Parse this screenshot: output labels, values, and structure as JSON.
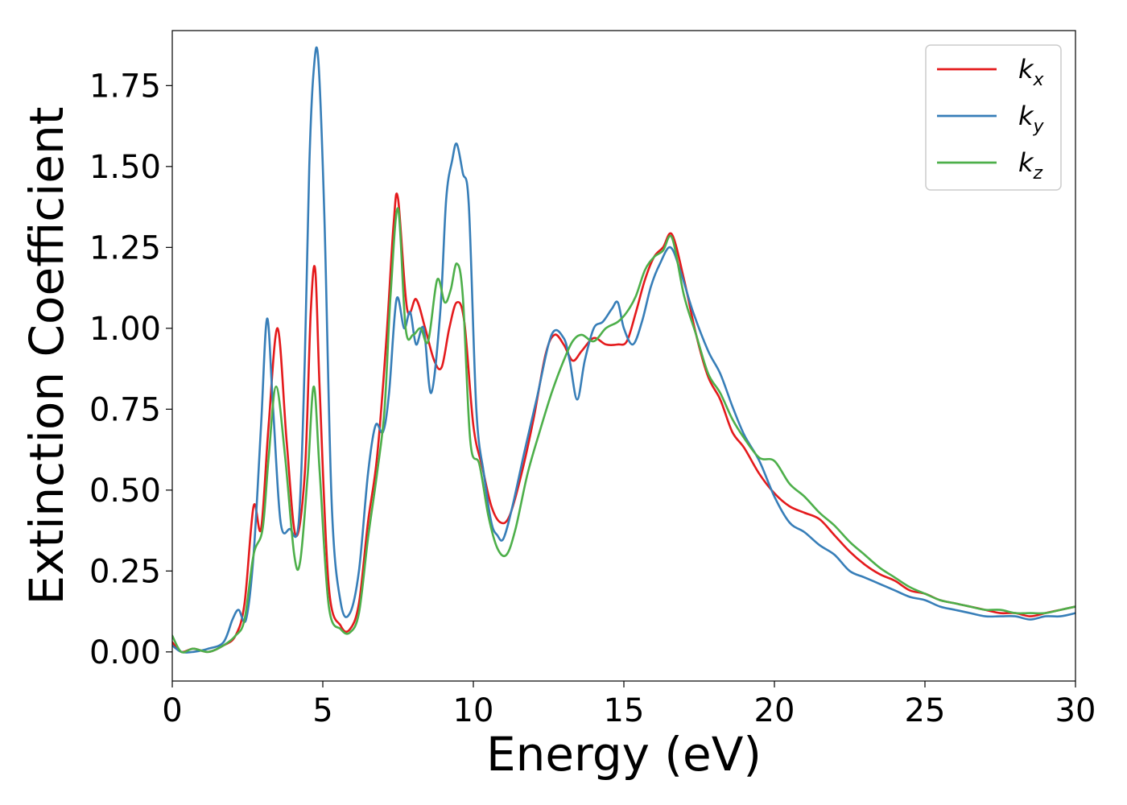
{
  "chart_data": {
    "type": "line",
    "xlabel": "Energy (eV)",
    "ylabel": "Extinction Coefficient",
    "xlim": [
      0,
      30
    ],
    "ylim": [
      -0.09,
      1.92
    ],
    "xticks": [
      0,
      5,
      10,
      15,
      20,
      25,
      30
    ],
    "xtick_labels": [
      "0",
      "5",
      "10",
      "15",
      "20",
      "25",
      "30"
    ],
    "yticks": [
      0.0,
      0.25,
      0.5,
      0.75,
      1.0,
      1.25,
      1.5,
      1.75
    ],
    "ytick_labels": [
      "0.00",
      "0.25",
      "0.50",
      "0.75",
      "1.00",
      "1.25",
      "1.50",
      "1.75"
    ],
    "grid": false,
    "legend_position": "top-right",
    "series": [
      {
        "name": "k_x",
        "label_base": "k",
        "label_sub": "x",
        "color": "#e41a1c",
        "x": [
          0,
          0.3,
          0.7,
          1.2,
          1.7,
          2.1,
          2.4,
          2.7,
          2.95,
          3.2,
          3.5,
          3.8,
          4.1,
          4.4,
          4.6,
          4.75,
          4.9,
          5.2,
          5.6,
          5.9,
          6.2,
          6.5,
          6.8,
          7.1,
          7.35,
          7.5,
          7.8,
          8.1,
          8.4,
          8.7,
          8.95,
          9.2,
          9.45,
          9.7,
          10.0,
          10.3,
          10.6,
          10.9,
          11.2,
          11.6,
          12.0,
          12.4,
          12.7,
          13.0,
          13.3,
          13.6,
          14.0,
          14.4,
          14.8,
          15.1,
          15.4,
          15.7,
          16.0,
          16.3,
          16.6,
          17.0,
          17.4,
          17.8,
          18.2,
          18.6,
          19.0,
          19.5,
          20.0,
          20.5,
          21.0,
          21.5,
          22.0,
          22.5,
          23.0,
          23.5,
          24.0,
          24.5,
          25.0,
          25.5,
          26.0,
          26.5,
          27.0,
          27.5,
          28.0,
          28.5,
          29.0,
          29.5,
          30.0
        ],
        "y": [
          0.03,
          0.0,
          0.01,
          0.0,
          0.02,
          0.05,
          0.15,
          0.45,
          0.38,
          0.7,
          1.0,
          0.65,
          0.36,
          0.55,
          1.05,
          1.18,
          0.8,
          0.2,
          0.08,
          0.07,
          0.15,
          0.4,
          0.6,
          0.95,
          1.32,
          1.4,
          1.06,
          1.09,
          1.0,
          0.9,
          0.88,
          1.0,
          1.08,
          1.02,
          0.7,
          0.57,
          0.45,
          0.4,
          0.42,
          0.55,
          0.72,
          0.92,
          0.98,
          0.95,
          0.9,
          0.93,
          0.97,
          0.95,
          0.95,
          0.96,
          1.05,
          1.15,
          1.22,
          1.25,
          1.29,
          1.15,
          0.98,
          0.85,
          0.78,
          0.68,
          0.63,
          0.55,
          0.49,
          0.45,
          0.43,
          0.41,
          0.36,
          0.31,
          0.27,
          0.24,
          0.22,
          0.19,
          0.18,
          0.16,
          0.15,
          0.14,
          0.13,
          0.12,
          0.12,
          0.11,
          0.12,
          0.13,
          0.14
        ]
      },
      {
        "name": "k_y",
        "label_base": "k",
        "label_sub": "y",
        "color": "#377eb8",
        "x": [
          0,
          0.3,
          0.7,
          1.2,
          1.7,
          2.0,
          2.2,
          2.45,
          2.7,
          2.95,
          3.15,
          3.35,
          3.6,
          3.9,
          4.2,
          4.4,
          4.55,
          4.7,
          4.85,
          5.05,
          5.3,
          5.6,
          5.9,
          6.2,
          6.5,
          6.75,
          7.0,
          7.2,
          7.45,
          7.7,
          7.9,
          8.1,
          8.35,
          8.6,
          8.9,
          9.1,
          9.3,
          9.45,
          9.65,
          9.85,
          10.1,
          10.35,
          10.6,
          10.8,
          11.0,
          11.3,
          11.7,
          12.1,
          12.6,
          13.0,
          13.2,
          13.45,
          13.7,
          14.0,
          14.3,
          14.6,
          14.8,
          15.0,
          15.3,
          15.6,
          15.9,
          16.2,
          16.55,
          16.9,
          17.3,
          17.8,
          18.2,
          18.6,
          19.0,
          19.5,
          20.0,
          20.5,
          21.0,
          21.5,
          22.0,
          22.5,
          23.0,
          23.5,
          24.0,
          24.5,
          25.0,
          25.5,
          26.0,
          26.5,
          27.0,
          27.5,
          28.0,
          28.5,
          29.0,
          29.5,
          30.0
        ],
        "y": [
          0.02,
          0.0,
          0.0,
          0.01,
          0.03,
          0.1,
          0.13,
          0.1,
          0.3,
          0.7,
          1.03,
          0.75,
          0.4,
          0.38,
          0.4,
          0.9,
          1.5,
          1.8,
          1.83,
          1.35,
          0.45,
          0.15,
          0.12,
          0.25,
          0.55,
          0.7,
          0.68,
          0.8,
          1.09,
          1.0,
          1.05,
          0.95,
          1.0,
          0.8,
          1.05,
          1.4,
          1.52,
          1.57,
          1.48,
          1.38,
          0.75,
          0.55,
          0.4,
          0.36,
          0.35,
          0.45,
          0.62,
          0.78,
          0.98,
          0.97,
          0.9,
          0.78,
          0.9,
          1.0,
          1.02,
          1.06,
          1.08,
          1.0,
          0.95,
          1.02,
          1.13,
          1.2,
          1.25,
          1.17,
          1.05,
          0.93,
          0.86,
          0.76,
          0.67,
          0.59,
          0.48,
          0.4,
          0.37,
          0.33,
          0.3,
          0.25,
          0.23,
          0.21,
          0.19,
          0.17,
          0.16,
          0.14,
          0.13,
          0.12,
          0.11,
          0.11,
          0.11,
          0.1,
          0.11,
          0.11,
          0.12
        ]
      },
      {
        "name": "k_z",
        "label_base": "k",
        "label_sub": "z",
        "color": "#4daf4a",
        "x": [
          0,
          0.3,
          0.7,
          1.2,
          1.7,
          2.1,
          2.4,
          2.7,
          3.0,
          3.2,
          3.45,
          3.75,
          4.05,
          4.25,
          4.5,
          4.7,
          4.9,
          5.2,
          5.6,
          5.9,
          6.2,
          6.5,
          6.8,
          7.05,
          7.25,
          7.5,
          7.75,
          8.0,
          8.25,
          8.5,
          8.8,
          9.05,
          9.25,
          9.45,
          9.65,
          9.9,
          10.2,
          10.5,
          10.8,
          11.1,
          11.4,
          11.8,
          12.2,
          12.6,
          13.0,
          13.3,
          13.6,
          14.0,
          14.4,
          14.8,
          15.1,
          15.4,
          15.7,
          16.0,
          16.3,
          16.6,
          17.0,
          17.4,
          17.8,
          18.2,
          18.6,
          19.0,
          19.5,
          20.0,
          20.5,
          21.0,
          21.5,
          22.0,
          22.5,
          23.0,
          23.5,
          24.0,
          24.5,
          25.0,
          25.5,
          26.0,
          26.5,
          27.0,
          27.5,
          28.0,
          28.5,
          29.0,
          29.5,
          30.0
        ],
        "y": [
          0.05,
          0.0,
          0.01,
          0.0,
          0.02,
          0.05,
          0.1,
          0.3,
          0.38,
          0.6,
          0.82,
          0.6,
          0.3,
          0.28,
          0.55,
          0.82,
          0.55,
          0.14,
          0.07,
          0.06,
          0.12,
          0.35,
          0.55,
          0.75,
          1.1,
          1.37,
          1.0,
          0.98,
          1.0,
          0.96,
          1.15,
          1.08,
          1.12,
          1.2,
          1.1,
          0.65,
          0.58,
          0.42,
          0.32,
          0.3,
          0.38,
          0.55,
          0.68,
          0.8,
          0.9,
          0.96,
          0.98,
          0.96,
          1.0,
          1.02,
          1.05,
          1.1,
          1.18,
          1.22,
          1.24,
          1.28,
          1.1,
          0.98,
          0.86,
          0.8,
          0.72,
          0.66,
          0.6,
          0.59,
          0.52,
          0.48,
          0.43,
          0.39,
          0.34,
          0.3,
          0.26,
          0.23,
          0.2,
          0.18,
          0.16,
          0.15,
          0.14,
          0.13,
          0.13,
          0.12,
          0.12,
          0.12,
          0.13,
          0.14
        ]
      }
    ]
  }
}
